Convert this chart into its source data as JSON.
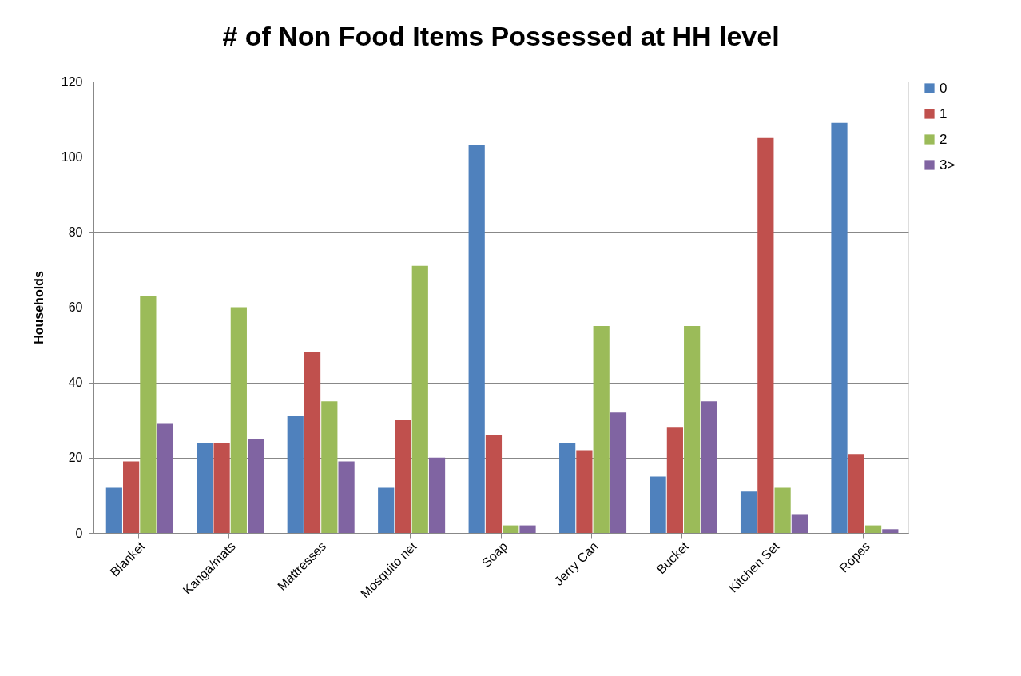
{
  "chart_data": {
    "type": "bar",
    "title": "# of Non Food Items Possessed at HH level",
    "ylabel": "Households",
    "categories": [
      "Blanket",
      "Kanga/mats",
      "Mattresses",
      "Mosquito net",
      "Soap",
      "Jerry Can",
      "Bucket",
      "Kitchen Set",
      "Ropes"
    ],
    "series": [
      {
        "name": "0",
        "color": "#4f81bd",
        "values": [
          12,
          24,
          31,
          12,
          103,
          24,
          15,
          11,
          109
        ]
      },
      {
        "name": "1",
        "color": "#c0504d",
        "values": [
          19,
          24,
          48,
          30,
          26,
          22,
          28,
          105,
          21
        ]
      },
      {
        "name": "2",
        "color": "#9bbb59",
        "values": [
          63,
          60,
          35,
          71,
          2,
          55,
          55,
          12,
          2
        ]
      },
      {
        "name": "3>",
        "color": "#8064a2",
        "values": [
          29,
          25,
          19,
          20,
          2,
          32,
          35,
          5,
          1
        ]
      }
    ],
    "ylim": [
      0,
      120
    ],
    "yticks": [
      0,
      20,
      40,
      60,
      80,
      100,
      120
    ],
    "grid": "y",
    "legend": "right"
  }
}
